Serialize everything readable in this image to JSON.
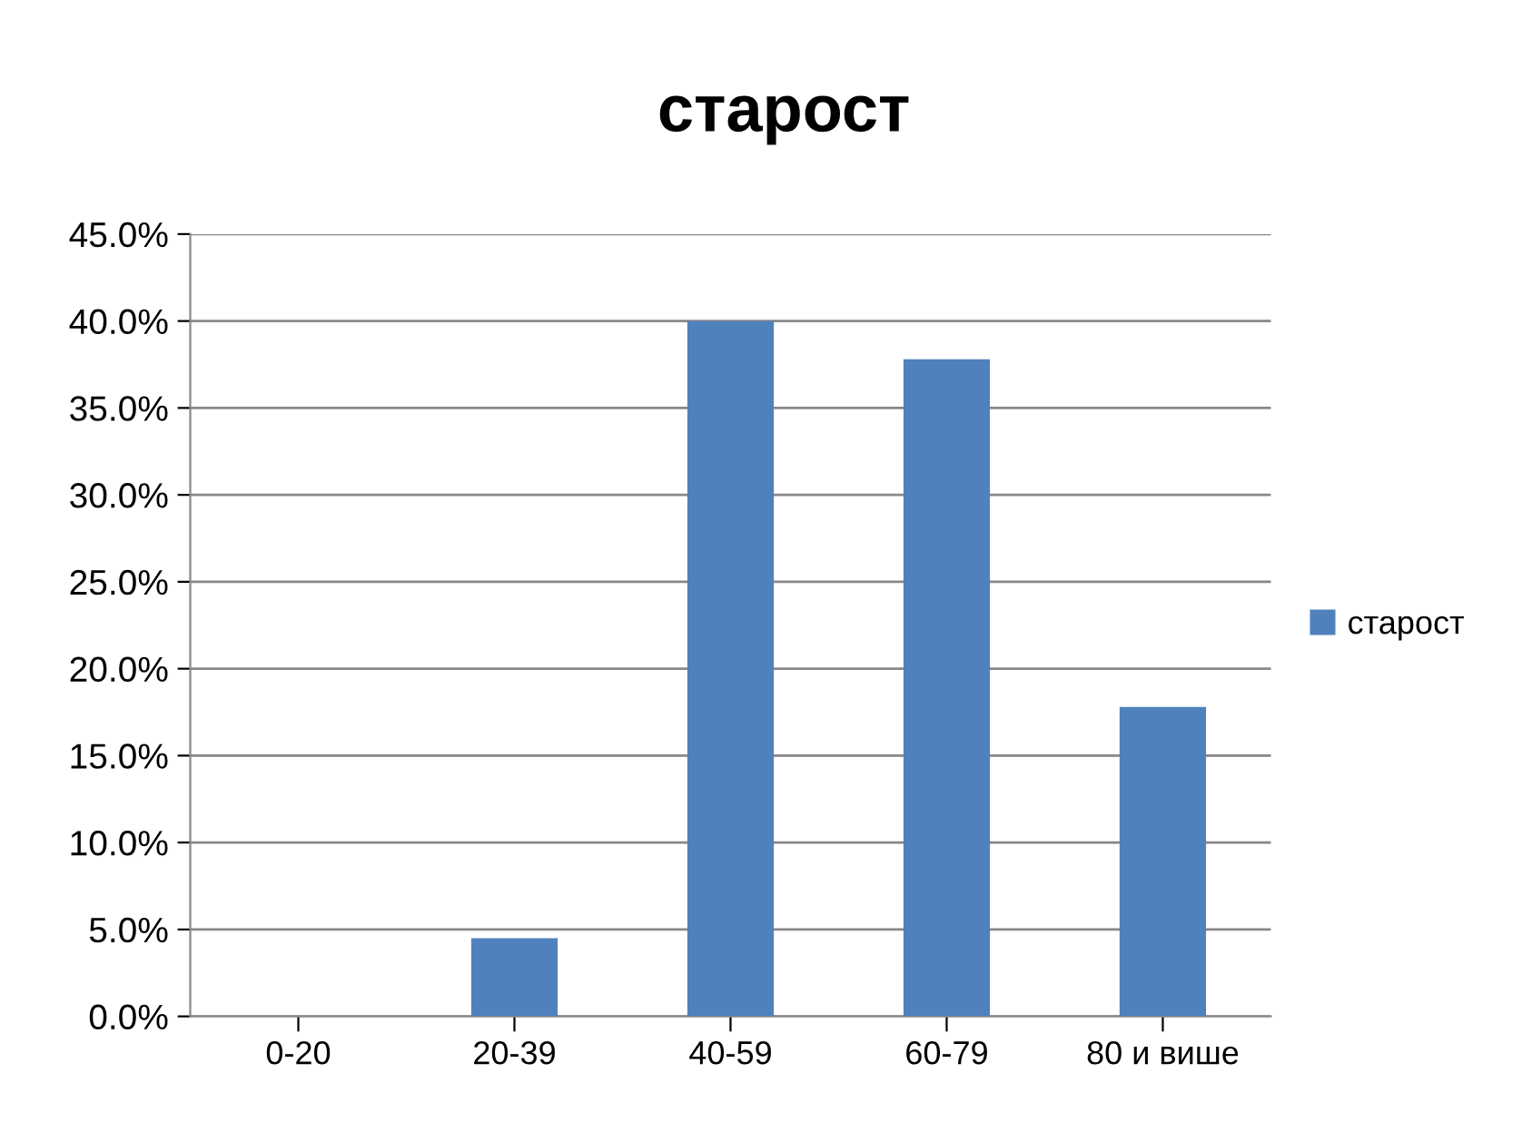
{
  "chart_data": {
    "type": "bar",
    "title": "старост",
    "categories": [
      "0-20",
      "20-39",
      "40-59",
      "60-79",
      "80 и више"
    ],
    "series": [
      {
        "name": "старост",
        "color": "#4f81bd",
        "values": [
          0,
          4.5,
          40.0,
          37.8,
          17.8
        ]
      }
    ],
    "ylim": [
      0,
      45
    ],
    "yticks": [
      {
        "value": 0,
        "label": "0.0%"
      },
      {
        "value": 5,
        "label": "5.0%"
      },
      {
        "value": 10,
        "label": "10.0%"
      },
      {
        "value": 15,
        "label": "15.0%"
      },
      {
        "value": 20,
        "label": "20.0%"
      },
      {
        "value": 25,
        "label": "25.0%"
      },
      {
        "value": 30,
        "label": "30.0%"
      },
      {
        "value": 35,
        "label": "35.0%"
      },
      {
        "value": 40,
        "label": "40.0%"
      },
      {
        "value": 45,
        "label": "45.0%"
      }
    ],
    "grid": "y",
    "legend": "right"
  }
}
